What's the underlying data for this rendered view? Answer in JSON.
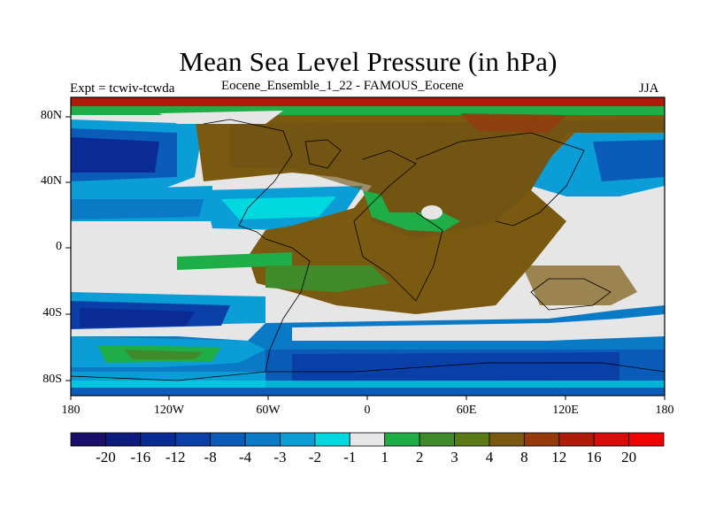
{
  "title": "Mean Sea Level Pressure (in hPa)",
  "left_header": "Expt = tcwiv-tcwda",
  "center_header": "Eocene_Ensemble_1_22 - FAMOUS_Eocene",
  "right_header": "JJA",
  "y_ticks": [
    "80N",
    "40N",
    "0",
    "40S",
    "80S"
  ],
  "x_ticks": [
    "180",
    "120W",
    "60W",
    "0",
    "60E",
    "120E",
    "180"
  ],
  "colorbar": {
    "labels": [
      "-20",
      "-16",
      "-12",
      "-8",
      "-4",
      "-3",
      "-2",
      "-1",
      "1",
      "2",
      "3",
      "4",
      "8",
      "12",
      "16",
      "20"
    ],
    "colors": [
      "#1a0e6a",
      "#0d1a7e",
      "#0a2a94",
      "#0a3fa8",
      "#0a5cb8",
      "#0a79c6",
      "#0a9dd6",
      "#00d8e0",
      "#e6e6e6",
      "#1fad47",
      "#3f8a2a",
      "#5a7a18",
      "#7a5a10",
      "#963a0c",
      "#b01a08",
      "#d80a0a",
      "#f00000"
    ]
  }
}
